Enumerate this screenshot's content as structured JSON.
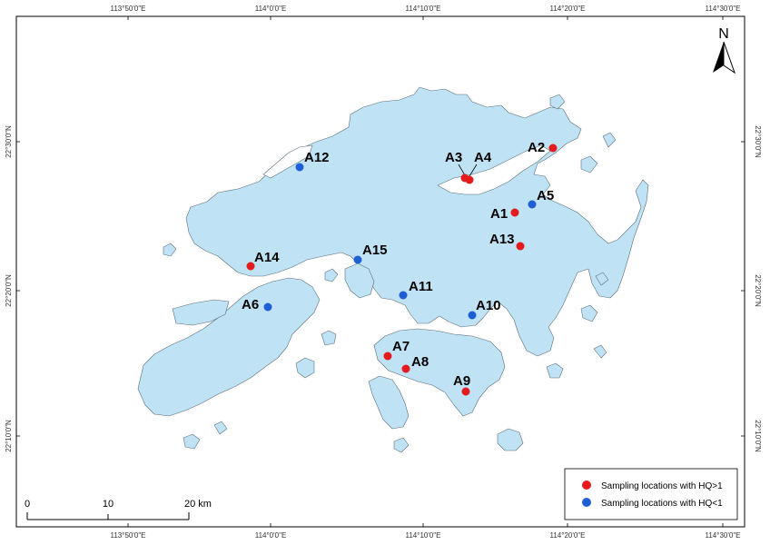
{
  "map": {
    "colors": {
      "land": "#bfe3f5",
      "coast": "#5b6e7a",
      "hq_high": "#e41a1c",
      "hq_low": "#1f5fd6",
      "frame": "#000000"
    },
    "lon_ticks": [
      "113°50'0\"E",
      "114°0'0\"E",
      "114°10'0\"E",
      "114°20'0\"E",
      "114°30'0\"E"
    ],
    "lat_ticks": [
      "22°30'0\"N",
      "22°20'0\"N",
      "22°10'0\"N"
    ],
    "north_arrow": {
      "label": "N"
    },
    "scale_bar": {
      "labels": [
        "0",
        "10",
        "20 km"
      ]
    },
    "legend": [
      {
        "label": "Sampling locations with HQ>1",
        "category": "hq_high"
      },
      {
        "label": "Sampling locations with HQ<1",
        "category": "hq_low"
      }
    ],
    "sites": [
      {
        "name": "A1",
        "category": "hq_high"
      },
      {
        "name": "A2",
        "category": "hq_high"
      },
      {
        "name": "A3",
        "category": "hq_high"
      },
      {
        "name": "A4",
        "category": "hq_high"
      },
      {
        "name": "A5",
        "category": "hq_low"
      },
      {
        "name": "A6",
        "category": "hq_low"
      },
      {
        "name": "A7",
        "category": "hq_high"
      },
      {
        "name": "A8",
        "category": "hq_high"
      },
      {
        "name": "A9",
        "category": "hq_high"
      },
      {
        "name": "A10",
        "category": "hq_low"
      },
      {
        "name": "A11",
        "category": "hq_low"
      },
      {
        "name": "A12",
        "category": "hq_low"
      },
      {
        "name": "A13",
        "category": "hq_high"
      },
      {
        "name": "A14",
        "category": "hq_high"
      },
      {
        "name": "A15",
        "category": "hq_low"
      }
    ]
  }
}
